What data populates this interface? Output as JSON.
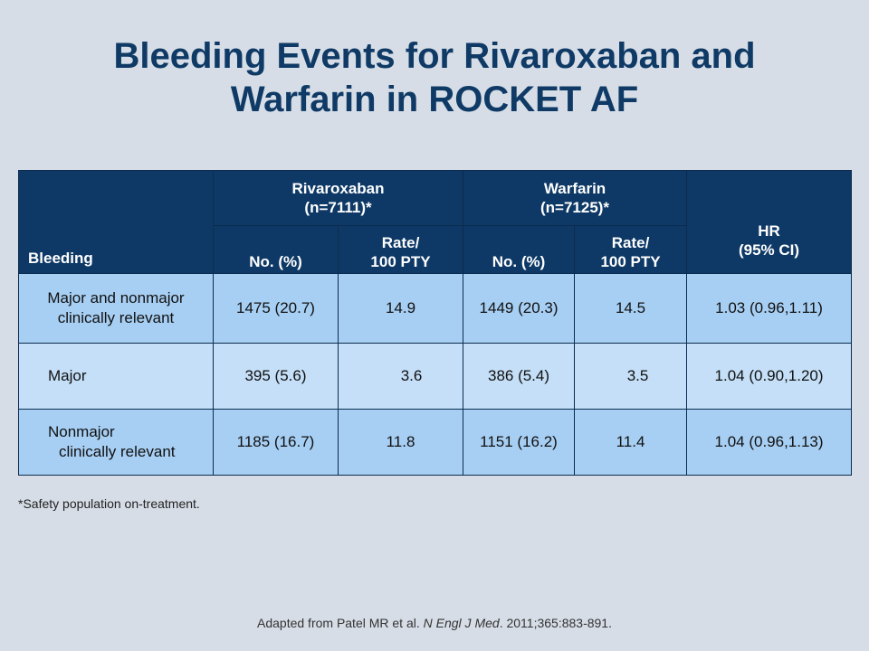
{
  "title": {
    "line1": "Bleeding Events for Rivaroxaban and",
    "line2": "Warfarin in ROCKET AF"
  },
  "table": {
    "header": {
      "bleeding": "Bleeding",
      "rivaroxaban": "Rivaroxaban",
      "rivaroxaban_n": "(n=7111)*",
      "warfarin": "Warfarin",
      "warfarin_n": "(n=7125)*",
      "hr": "HR",
      "hr_ci": "(95% CI)",
      "no_pct": "No. (%)",
      "rate_line1": "Rate/",
      "rate_line2": "100 PTY"
    },
    "rows": [
      {
        "label_line1": "Major and nonmajor",
        "label_line2": "clinically relevant",
        "riva_no": "1475 (20.7)",
        "riva_rate": "14.9",
        "warf_no": "1449 (20.3)",
        "warf_rate": "14.5",
        "hr": "1.03 (0.96,1.11)"
      },
      {
        "label": "Major",
        "riva_no": "395 (5.6)",
        "riva_rate": "3.6",
        "warf_no": "386 (5.4)",
        "warf_rate": "3.5",
        "hr": "1.04 (0.90,1.20)"
      },
      {
        "label_line1": "Nonmajor",
        "label_line2": "clinically relevant",
        "riva_no": "1185 (16.7)",
        "riva_rate": "11.8",
        "warf_no": "1151 (16.2)",
        "warf_rate": "11.4",
        "hr": "1.04 (0.96,1.13)"
      }
    ]
  },
  "footnote": "*Safety population  on-treatment.",
  "source": {
    "prefix": "Adapted from Patel MR et al. ",
    "journal": "N Engl J Med",
    "suffix": ". 2011;365:883-891."
  }
}
